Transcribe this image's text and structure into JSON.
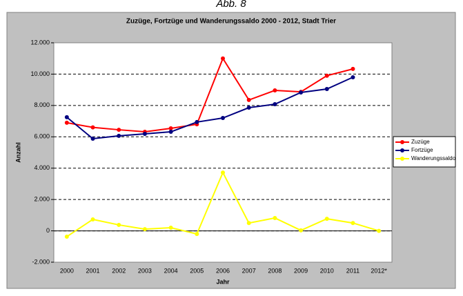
{
  "chart_data": {
    "type": "line",
    "figure_label": "Abb. 8",
    "title": "Zuzüge, Fortzüge und Wanderungssaldo 2000 - 2012, Stadt Trier",
    "xlabel": "Jahr",
    "ylabel": "Anzahl",
    "categories": [
      "2000",
      "2001",
      "2002",
      "2003",
      "2004",
      "2005",
      "2006",
      "2007",
      "2008",
      "2009",
      "2010",
      "2011",
      "2012*"
    ],
    "series": [
      {
        "name": "Zuzüge",
        "color": "#ff0000",
        "values": [
          6900,
          6600,
          6450,
          6320,
          6540,
          6800,
          11000,
          8350,
          8960,
          8870,
          9900,
          10330,
          null
        ]
      },
      {
        "name": "Fortzüge",
        "color": "#000080",
        "values": [
          7250,
          5880,
          6060,
          6190,
          6320,
          6940,
          7200,
          7860,
          8080,
          8830,
          9050,
          9800,
          null
        ]
      },
      {
        "name": "Wanderungssaldo",
        "color": "#ffff00",
        "values": [
          -370,
          730,
          380,
          110,
          200,
          -200,
          3720,
          500,
          820,
          30,
          770,
          500,
          0
        ]
      }
    ],
    "ylim": [
      -2000,
      12000
    ],
    "yticks": [
      {
        "value": -2000,
        "label": "-2.000"
      },
      0,
      {
        "value": 2000,
        "label": "2.000"
      },
      {
        "value": 4000,
        "label": "4.000"
      },
      {
        "value": 6000,
        "label": "6.000"
      },
      {
        "value": 8000,
        "label": "8.000"
      },
      {
        "value": 10000,
        "label": "10.000"
      },
      {
        "value": 12000,
        "label": "12.000"
      }
    ],
    "grid": true,
    "legend": "right"
  }
}
